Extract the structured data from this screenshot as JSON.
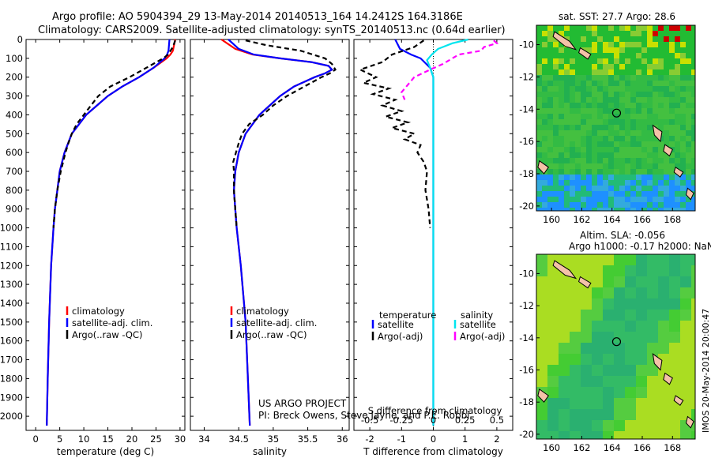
{
  "header": {
    "line1": "Argo profile: AO 5904394_29 13-May-2014 20140513_164 14.2412S 164.3186E",
    "line2": "Climatology: CARS2009. Satellite-adjusted climatology: synTS_20140513.nc (0.64d earlier)"
  },
  "credits": {
    "line1": "US ARGO PROJECT",
    "line2": "PI: Breck Owens, Steve Jayne, and P.E. Robbi"
  },
  "side_label": "IMOS 20-May-2014 20:00:47",
  "colors": {
    "climatology": "#ff0000",
    "satellite": "#0000ff",
    "argo": "#000000",
    "sal_satellite": "#00e5ee",
    "sal_argo": "#ff00ff"
  },
  "chart_data": [
    {
      "type": "line",
      "xlabel": "temperature (deg C)",
      "xticks": [
        0,
        5,
        10,
        15,
        20,
        25,
        30
      ],
      "xlim": [
        -2,
        31
      ],
      "ylim": [
        2075,
        0
      ],
      "yticks": [
        0,
        100,
        200,
        300,
        400,
        500,
        600,
        700,
        800,
        900,
        1000,
        1100,
        1200,
        1300,
        1400,
        1500,
        1600,
        1700,
        1800,
        1900,
        2000
      ],
      "legend": [
        "climatology",
        "satellite-adj. clim.",
        "Argo(..raw -QC)"
      ],
      "series": [
        {
          "name": "climatology",
          "color": "#ff0000",
          "dash": "none",
          "depth": [
            0,
            60,
            80,
            100,
            150,
            200,
            250,
            300,
            400,
            500,
            600,
            700,
            800,
            900,
            1000,
            1200,
            1500,
            1800,
            2050
          ],
          "values": [
            29,
            28.5,
            28,
            27.2,
            24.5,
            21.5,
            18,
            15,
            10.5,
            7.5,
            6,
            5,
            4.5,
            4,
            3.7,
            3.2,
            2.8,
            2.5,
            2.3
          ]
        },
        {
          "name": "satellite-adj. clim.",
          "color": "#0000ff",
          "dash": "none",
          "depth": [
            0,
            60,
            80,
            100,
            150,
            200,
            250,
            300,
            400,
            500,
            600,
            700,
            800,
            900,
            1000,
            1200,
            1500,
            1800,
            2050
          ],
          "values": [
            27.8,
            27.6,
            27.3,
            26.8,
            24.5,
            21.5,
            18,
            15,
            10.5,
            7.5,
            6,
            5,
            4.5,
            4,
            3.7,
            3.2,
            2.8,
            2.5,
            2.3
          ]
        },
        {
          "name": "Argo(..raw -QC)",
          "color": "#000000",
          "dash": "6,4",
          "depth": [
            5,
            40,
            80,
            100,
            150,
            200,
            250,
            300,
            350,
            400,
            450,
            500,
            550,
            600,
            700,
            800,
            900,
            1000
          ],
          "values": [
            29,
            28.5,
            27.5,
            26.5,
            23,
            19.5,
            15.5,
            13,
            11.5,
            10,
            8.5,
            7.5,
            6.8,
            6.2,
            5.2,
            4.5,
            4,
            3.7
          ]
        }
      ]
    },
    {
      "type": "line",
      "xlabel": "salinity",
      "xticks": [
        34,
        34.5,
        35,
        35.5,
        36
      ],
      "xlim": [
        33.8,
        36.1
      ],
      "ylim": [
        2075,
        0
      ],
      "legend": [
        "climatology",
        "satellite-adj. clim.",
        "Argo(..raw -QC)"
      ],
      "series": [
        {
          "name": "climatology",
          "color": "#ff0000",
          "dash": "none",
          "depth": [
            0,
            50,
            80,
            100,
            120,
            140,
            160,
            180,
            200,
            250,
            300,
            350,
            400,
            500,
            600,
            700,
            800,
            900,
            1000,
            1200,
            1500,
            2050
          ],
          "values": [
            34.25,
            34.45,
            34.7,
            35.1,
            35.55,
            35.8,
            35.85,
            35.75,
            35.6,
            35.3,
            35.1,
            34.95,
            34.8,
            34.6,
            34.5,
            34.45,
            34.43,
            34.45,
            34.47,
            34.53,
            34.6,
            34.66
          ]
        },
        {
          "name": "satellite-adj. clim.",
          "color": "#0000ff",
          "dash": "none",
          "depth": [
            0,
            50,
            80,
            100,
            120,
            140,
            160,
            180,
            200,
            250,
            300,
            350,
            400,
            500,
            600,
            700,
            800,
            900,
            1000,
            1200,
            1500,
            2050
          ],
          "values": [
            34.35,
            34.5,
            34.72,
            35.1,
            35.55,
            35.8,
            35.85,
            35.75,
            35.6,
            35.3,
            35.1,
            34.95,
            34.8,
            34.6,
            34.5,
            34.45,
            34.43,
            34.45,
            34.47,
            34.53,
            34.6,
            34.66
          ]
        },
        {
          "name": "Argo(..raw -QC)",
          "color": "#000000",
          "dash": "6,4",
          "depth": [
            5,
            30,
            60,
            100,
            130,
            160,
            180,
            200,
            250,
            300,
            350,
            400,
            450,
            500,
            550,
            600,
            650,
            700,
            800,
            900,
            1000
          ],
          "values": [
            34.6,
            34.9,
            35.4,
            35.75,
            35.85,
            35.9,
            35.82,
            35.7,
            35.45,
            35.2,
            35,
            34.85,
            34.65,
            34.55,
            34.5,
            34.46,
            34.42,
            34.43,
            34.43,
            34.45,
            34.47
          ]
        }
      ]
    },
    {
      "type": "line",
      "xlabel": "T difference from climatology",
      "xlabel_top": "S difference from climatology",
      "xticks": [
        -2,
        -1,
        0,
        1,
        2
      ],
      "xlim": [
        -2.5,
        2.5
      ],
      "xticks_top": [
        "-0.5",
        "-0.25",
        "0",
        "0.25",
        "0.5"
      ],
      "ylim": [
        2075,
        0
      ],
      "legend_temperature_title": "temperature",
      "legend_salinity_title": "salinity",
      "legend": [
        "satellite",
        "Argo(-adj)",
        "satellite",
        "Argo(-adj)"
      ],
      "series": [
        {
          "name": "satellite",
          "color": "#0000ff",
          "dash": "none",
          "depth": [
            0,
            50,
            80,
            100,
            150,
            200,
            300,
            500,
            800,
            1200,
            2050
          ],
          "values": [
            -1.2,
            -1.05,
            -0.7,
            -0.4,
            -0.1,
            0,
            0,
            0,
            0,
            0,
            0
          ]
        },
        {
          "name": "Argo(-adj)",
          "color": "#000000",
          "dash": "6,4",
          "depth": [
            5,
            40,
            80,
            120,
            160,
            200,
            230,
            260,
            290,
            320,
            350,
            380,
            410,
            440,
            470,
            500,
            530,
            560,
            600,
            650,
            700,
            800,
            900,
            1000
          ],
          "values": [
            -0.3,
            -0.6,
            -1.3,
            -1.6,
            -2.3,
            -1.8,
            -2.2,
            -1.4,
            -1.9,
            -1.2,
            -1.6,
            -1.0,
            -1.5,
            -0.8,
            -1.3,
            -0.6,
            -0.9,
            -0.4,
            -0.5,
            -0.3,
            -0.2,
            -0.25,
            -0.15,
            -0.1
          ]
        },
        {
          "name": "satellite",
          "color": "#00e5ee",
          "dash": "none",
          "depth": [
            0,
            20,
            50,
            80,
            110,
            150,
            200,
            300,
            400,
            500,
            800,
            1200,
            2050
          ],
          "values": [
            1.1,
            0.6,
            0.15,
            -0.05,
            -0.2,
            -0.1,
            0,
            0,
            0,
            0,
            0,
            0,
            0
          ]
        },
        {
          "name": "Argo(-adj)",
          "color": "#ff00ff",
          "dash": "6,4",
          "depth": [
            5,
            20,
            40,
            60,
            80,
            100,
            130,
            160,
            200,
            240,
            280,
            320
          ],
          "values": [
            1.9,
            2.0,
            1.6,
            1.5,
            0.8,
            0.6,
            0.3,
            -0.1,
            -0.6,
            -0.8,
            -1.0,
            -0.9
          ]
        }
      ]
    },
    {
      "type": "heatmap",
      "title": "sat. SST: 27.7 Argo: 28.6",
      "xticks": [
        160,
        162,
        164,
        166,
        168
      ],
      "yticks": [
        -10,
        -12,
        -14,
        -16,
        -18,
        -20
      ],
      "xlim": [
        159,
        169.5
      ],
      "ylim": [
        -20.3,
        -8.8
      ],
      "profile_location": [
        164.3,
        -14.24
      ]
    },
    {
      "type": "heatmap",
      "title": "Altim. SLA: -0.056",
      "subtitle": "Argo h1000: -0.17 h2000: NaN",
      "xticks": [
        160,
        162,
        164,
        166,
        168
      ],
      "yticks": [
        -10,
        -12,
        -14,
        -16,
        -18,
        -20
      ],
      "xlim": [
        159,
        169.5
      ],
      "ylim": [
        -20.3,
        -8.8
      ],
      "profile_location": [
        164.3,
        -14.24
      ]
    }
  ]
}
